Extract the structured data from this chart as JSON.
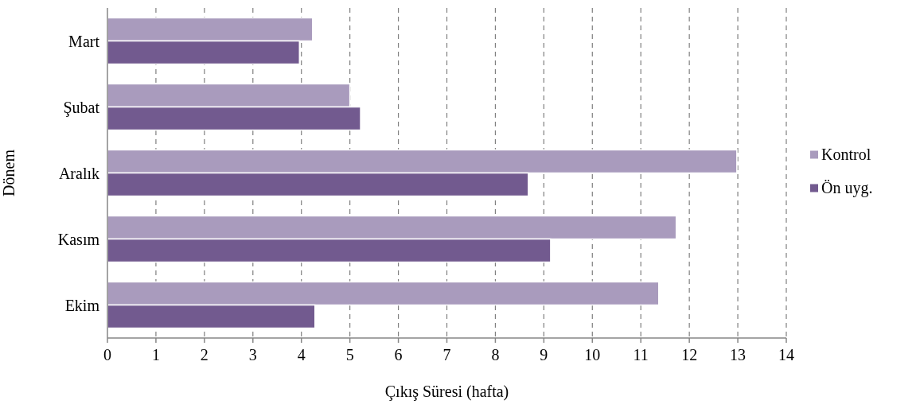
{
  "chart_data": {
    "type": "bar",
    "orientation": "horizontal",
    "xlabel": "Çıkış Süresi (hafta)",
    "ylabel": "Dönem",
    "categories": [
      "Mart",
      "Şubat",
      "Aralık",
      "Kasım",
      "Ekim"
    ],
    "series": [
      {
        "name": "Kontrol",
        "color": "#a99bbd",
        "values": [
          4.23,
          5.0,
          12.98,
          11.73,
          11.37
        ]
      },
      {
        "name": "Ön uyg.",
        "color": "#725a8f",
        "values": [
          3.96,
          5.22,
          8.68,
          9.14,
          4.28
        ]
      }
    ],
    "xlim": [
      0,
      14
    ],
    "xticks": [
      0,
      1,
      2,
      3,
      4,
      5,
      6,
      7,
      8,
      9,
      10,
      11,
      12,
      13,
      14
    ],
    "grid": "x",
    "legend": "right"
  }
}
